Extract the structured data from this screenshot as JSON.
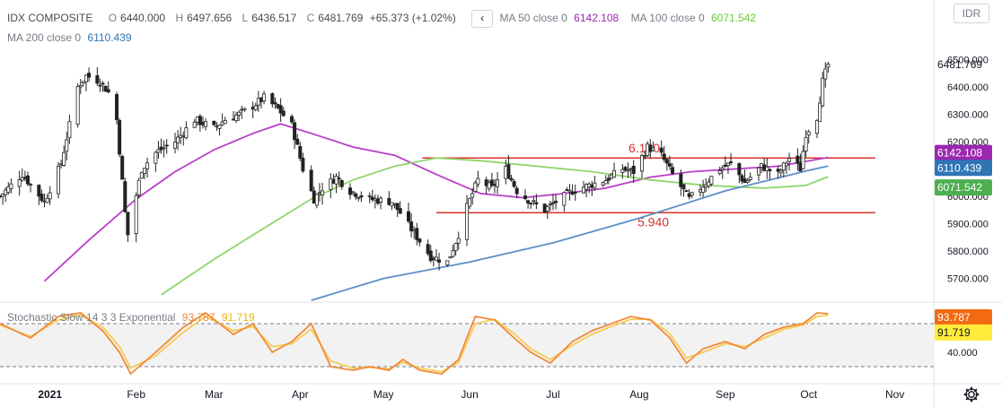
{
  "header": {
    "symbol": "IDX COMPOSITE",
    "open_label": "O",
    "open": "6440.000",
    "high_label": "H",
    "high": "6497.656",
    "low_label": "L",
    "low": "6436.517",
    "close_label": "C",
    "close": "6481.769",
    "change": "+65.373 (+1.02%)",
    "nav_label": "‹",
    "ma50_label": "MA 50 close 0",
    "ma50_value": "6142.108",
    "ma100_label": "MA 100 close 0",
    "ma100_value": "6071.542",
    "ma200_label": "MA 200 close 0",
    "ma200_value": "6110.439",
    "currency": "IDR"
  },
  "oscillator": {
    "label": "Stochastic Slow 14 3 3 Exponential",
    "k_value": "93.787",
    "d_value": "91.719"
  },
  "colors": {
    "up": "#26a69a",
    "candle": "#222222",
    "ma50": "#b83dc8",
    "ma100": "#8fd56b",
    "ma200": "#5b8fc7",
    "support": "#d9322b",
    "stoch_k": "#f28a3a",
    "stoch_d": "#f5cd55"
  },
  "icons": {
    "settings": "gear-icon",
    "back": "chevron-left-icon"
  },
  "chart_data": {
    "type": "candlestick",
    "x_range": [
      "2020-12-14",
      "2021-11-15"
    ],
    "y_range": [
      5620,
      6560
    ],
    "y_ticks": [
      "6500.000",
      "6400.000",
      "6300.000",
      "6200.000",
      "6100.000",
      "6000.000",
      "5900.000",
      "5800.000",
      "5700.000"
    ],
    "x_ticks": [
      "2021",
      "Feb",
      "Mar",
      "Apr",
      "May",
      "Jun",
      "Jul",
      "Aug",
      "Sep",
      "Oct",
      "Nov"
    ],
    "x_tick_dates": [
      "2021-01-01",
      "2021-02-01",
      "2021-03-01",
      "2021-04-01",
      "2021-05-01",
      "2021-06-01",
      "2021-07-01",
      "2021-08-01",
      "2021-09-01",
      "2021-10-01",
      "2021-11-01"
    ],
    "last_price_label": "6481.769",
    "price_labels": [
      {
        "text": "6142.108",
        "value": 6142.108,
        "color": "#9c27b0"
      },
      {
        "text": "6110.439",
        "value": 6110.439,
        "color": "#2f74b5"
      },
      {
        "text": "6071.542",
        "value": 6071.542,
        "color": "#4caf50"
      }
    ],
    "close_path": [
      [
        "2020-12-14",
        6000
      ],
      [
        "2020-12-22",
        6080
      ],
      [
        "2020-12-30",
        5980
      ],
      [
        "2021-01-05",
        6120
      ],
      [
        "2021-01-11",
        6400
      ],
      [
        "2021-01-14",
        6440
      ],
      [
        "2021-01-19",
        6420
      ],
      [
        "2021-01-22",
        6380
      ],
      [
        "2021-01-25",
        6280
      ],
      [
        "2021-01-28",
        5940
      ],
      [
        "2021-01-29",
        5860
      ],
      [
        "2021-02-03",
        6100
      ],
      [
        "2021-02-08",
        6160
      ],
      [
        "2021-02-15",
        6200
      ],
      [
        "2021-02-22",
        6280
      ],
      [
        "2021-03-01",
        6250
      ],
      [
        "2021-03-05",
        6280
      ],
      [
        "2021-03-10",
        6300
      ],
      [
        "2021-03-15",
        6330
      ],
      [
        "2021-03-19",
        6360
      ],
      [
        "2021-03-24",
        6320
      ],
      [
        "2021-03-29",
        6260
      ],
      [
        "2021-04-02",
        6100
      ],
      [
        "2021-04-06",
        5990
      ],
      [
        "2021-04-09",
        6030
      ],
      [
        "2021-04-14",
        6070
      ],
      [
        "2021-04-19",
        6020
      ],
      [
        "2021-04-26",
        5990
      ],
      [
        "2021-05-04",
        5980
      ],
      [
        "2021-05-07",
        5940
      ],
      [
        "2021-05-11",
        5880
      ],
      [
        "2021-05-18",
        5780
      ],
      [
        "2021-05-24",
        5760
      ],
      [
        "2021-05-28",
        5860
      ],
      [
        "2021-05-31",
        5960
      ],
      [
        "2021-06-04",
        6060
      ],
      [
        "2021-06-09",
        6030
      ],
      [
        "2021-06-14",
        6100
      ],
      [
        "2021-06-18",
        6020
      ],
      [
        "2021-06-23",
        5980
      ],
      [
        "2021-06-28",
        5950
      ],
      [
        "2021-07-02",
        5980
      ],
      [
        "2021-07-08",
        6020
      ],
      [
        "2021-07-14",
        6040
      ],
      [
        "2021-07-20",
        6060
      ],
      [
        "2021-07-26",
        6100
      ],
      [
        "2021-07-30",
        6090
      ],
      [
        "2021-08-04",
        6180
      ],
      [
        "2021-08-09",
        6150
      ],
      [
        "2021-08-13",
        6080
      ],
      [
        "2021-08-19",
        5990
      ],
      [
        "2021-08-24",
        6040
      ],
      [
        "2021-08-30",
        6100
      ],
      [
        "2021-09-03",
        6120
      ],
      [
        "2021-09-08",
        6050
      ],
      [
        "2021-09-14",
        6110
      ],
      [
        "2021-09-20",
        6080
      ],
      [
        "2021-09-24",
        6140
      ],
      [
        "2021-09-28",
        6100
      ],
      [
        "2021-09-30",
        6230
      ],
      [
        "2021-10-04",
        6290
      ],
      [
        "2021-10-06",
        6420
      ],
      [
        "2021-10-08",
        6481.769
      ]
    ],
    "moving_averages": [
      {
        "name": "MA 50",
        "color": "#b83dc8",
        "points": [
          [
            "2020-12-30",
            5690
          ],
          [
            "2021-01-15",
            5840
          ],
          [
            "2021-02-01",
            5990
          ],
          [
            "2021-02-15",
            6090
          ],
          [
            "2021-03-01",
            6170
          ],
          [
            "2021-03-15",
            6230
          ],
          [
            "2021-03-25",
            6265
          ],
          [
            "2021-04-05",
            6230
          ],
          [
            "2021-04-20",
            6180
          ],
          [
            "2021-05-05",
            6150
          ],
          [
            "2021-05-20",
            6080
          ],
          [
            "2021-06-05",
            6010
          ],
          [
            "2021-06-20",
            5995
          ],
          [
            "2021-07-05",
            6010
          ],
          [
            "2021-07-20",
            6030
          ],
          [
            "2021-08-05",
            6070
          ],
          [
            "2021-08-20",
            6090
          ],
          [
            "2021-09-05",
            6100
          ],
          [
            "2021-09-20",
            6110
          ],
          [
            "2021-10-08",
            6142.108
          ]
        ]
      },
      {
        "name": "MA 100",
        "color": "#8fd56b",
        "points": [
          [
            "2021-02-10",
            5640
          ],
          [
            "2021-03-01",
            5770
          ],
          [
            "2021-03-20",
            5890
          ],
          [
            "2021-04-05",
            5990
          ],
          [
            "2021-04-20",
            6060
          ],
          [
            "2021-05-05",
            6110
          ],
          [
            "2021-05-20",
            6140
          ],
          [
            "2021-06-05",
            6130
          ],
          [
            "2021-06-25",
            6110
          ],
          [
            "2021-07-15",
            6090
          ],
          [
            "2021-08-05",
            6060
          ],
          [
            "2021-08-25",
            6040
          ],
          [
            "2021-09-15",
            6030
          ],
          [
            "2021-09-30",
            6040
          ],
          [
            "2021-10-08",
            6071.542
          ]
        ]
      },
      {
        "name": "MA 200",
        "color": "#5b8fc7",
        "points": [
          [
            "2021-04-05",
            5620
          ],
          [
            "2021-05-01",
            5700
          ],
          [
            "2021-06-01",
            5760
          ],
          [
            "2021-07-01",
            5830
          ],
          [
            "2021-08-01",
            5920
          ],
          [
            "2021-09-01",
            6020
          ],
          [
            "2021-10-01",
            6095
          ],
          [
            "2021-10-08",
            6110.439
          ]
        ]
      }
    ],
    "horizontal_lines": [
      {
        "value": 6140,
        "from": "2021-05-15",
        "to": "2021-11-01",
        "label": "6.140",
        "color": "#d9322b"
      },
      {
        "value": 5940,
        "from": "2021-05-20",
        "to": "2021-11-01",
        "label": "5.940",
        "color": "#d9322b"
      }
    ],
    "stochastic": {
      "name": "Stochastic Slow 14 3 3 Exponential",
      "y_range": [
        0,
        100
      ],
      "y_ticks": [
        "40.000"
      ],
      "bands": [
        80,
        20
      ],
      "last_k": "93.787",
      "last_d": "91.719",
      "k_path": [
        [
          "2020-12-14",
          80
        ],
        [
          "2020-12-25",
          60
        ],
        [
          "2021-01-04",
          90
        ],
        [
          "2021-01-12",
          95
        ],
        [
          "2021-01-20",
          70
        ],
        [
          "2021-01-26",
          40
        ],
        [
          "2021-01-30",
          10
        ],
        [
          "2021-02-08",
          40
        ],
        [
          "2021-02-18",
          75
        ],
        [
          "2021-02-26",
          95
        ],
        [
          "2021-03-08",
          65
        ],
        [
          "2021-03-15",
          80
        ],
        [
          "2021-03-22",
          40
        ],
        [
          "2021-03-29",
          55
        ],
        [
          "2021-04-05",
          80
        ],
        [
          "2021-04-12",
          20
        ],
        [
          "2021-04-20",
          15
        ],
        [
          "2021-04-26",
          20
        ],
        [
          "2021-05-03",
          15
        ],
        [
          "2021-05-08",
          30
        ],
        [
          "2021-05-14",
          15
        ],
        [
          "2021-05-22",
          10
        ],
        [
          "2021-05-28",
          30
        ],
        [
          "2021-06-03",
          90
        ],
        [
          "2021-06-10",
          85
        ],
        [
          "2021-06-17",
          60
        ],
        [
          "2021-06-23",
          40
        ],
        [
          "2021-06-30",
          25
        ],
        [
          "2021-07-08",
          55
        ],
        [
          "2021-07-15",
          70
        ],
        [
          "2021-07-22",
          80
        ],
        [
          "2021-07-29",
          90
        ],
        [
          "2021-08-05",
          85
        ],
        [
          "2021-08-12",
          60
        ],
        [
          "2021-08-18",
          25
        ],
        [
          "2021-08-24",
          45
        ],
        [
          "2021-09-01",
          55
        ],
        [
          "2021-09-08",
          45
        ],
        [
          "2021-09-15",
          65
        ],
        [
          "2021-09-22",
          75
        ],
        [
          "2021-09-29",
          80
        ],
        [
          "2021-10-04",
          95
        ],
        [
          "2021-10-08",
          93.787
        ]
      ],
      "d_path": [
        [
          "2020-12-14",
          78
        ],
        [
          "2020-12-25",
          62
        ],
        [
          "2021-01-04",
          85
        ],
        [
          "2021-01-12",
          92
        ],
        [
          "2021-01-20",
          75
        ],
        [
          "2021-01-26",
          48
        ],
        [
          "2021-01-30",
          18
        ],
        [
          "2021-02-08",
          35
        ],
        [
          "2021-02-18",
          68
        ],
        [
          "2021-02-26",
          90
        ],
        [
          "2021-03-08",
          70
        ],
        [
          "2021-03-15",
          76
        ],
        [
          "2021-03-22",
          48
        ],
        [
          "2021-03-29",
          52
        ],
        [
          "2021-04-05",
          72
        ],
        [
          "2021-04-12",
          28
        ],
        [
          "2021-04-20",
          18
        ],
        [
          "2021-04-26",
          19
        ],
        [
          "2021-05-03",
          17
        ],
        [
          "2021-05-08",
          26
        ],
        [
          "2021-05-14",
          18
        ],
        [
          "2021-05-22",
          13
        ],
        [
          "2021-05-28",
          26
        ],
        [
          "2021-06-03",
          80
        ],
        [
          "2021-06-10",
          86
        ],
        [
          "2021-06-17",
          66
        ],
        [
          "2021-06-23",
          45
        ],
        [
          "2021-06-30",
          30
        ],
        [
          "2021-07-08",
          50
        ],
        [
          "2021-07-15",
          65
        ],
        [
          "2021-07-22",
          76
        ],
        [
          "2021-07-29",
          86
        ],
        [
          "2021-08-05",
          86
        ],
        [
          "2021-08-12",
          66
        ],
        [
          "2021-08-18",
          32
        ],
        [
          "2021-08-24",
          40
        ],
        [
          "2021-09-01",
          52
        ],
        [
          "2021-09-08",
          48
        ],
        [
          "2021-09-15",
          60
        ],
        [
          "2021-09-22",
          72
        ],
        [
          "2021-09-29",
          78
        ],
        [
          "2021-10-04",
          90
        ],
        [
          "2021-10-08",
          91.719
        ]
      ]
    }
  }
}
